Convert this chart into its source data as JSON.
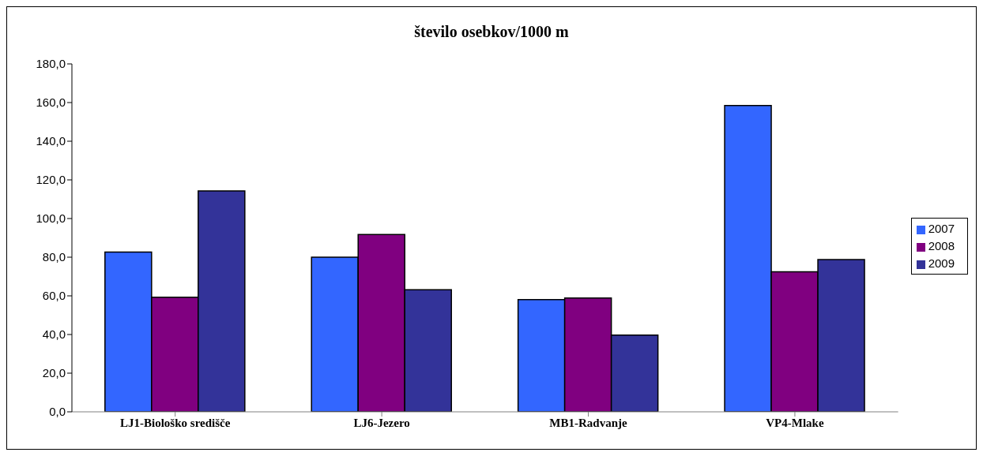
{
  "chart_data": {
    "type": "bar",
    "title": "število osebkov/1000 m",
    "categories": [
      "LJ1-Biološko središče",
      "LJ6-Jezero",
      "MB1-Radvanje",
      "VP4-Mlake"
    ],
    "series": [
      {
        "name": "2007",
        "color": "#3366ff",
        "values": [
          82.7,
          80.0,
          58.1,
          158.5
        ]
      },
      {
        "name": "2008",
        "color": "#800080",
        "values": [
          59.3,
          91.7,
          58.9,
          72.4
        ]
      },
      {
        "name": "2009",
        "color": "#333399",
        "values": [
          114.3,
          63.2,
          39.7,
          78.8
        ]
      }
    ],
    "ylim": [
      0,
      180
    ],
    "yticks": [
      {
        "value": 0,
        "label": "0,0"
      },
      {
        "value": 20,
        "label": "20,0"
      },
      {
        "value": 40,
        "label": "40,0"
      },
      {
        "value": 60,
        "label": "60,0"
      },
      {
        "value": 80,
        "label": "80,0"
      },
      {
        "value": 100,
        "label": "100,0"
      },
      {
        "value": 120,
        "label": "120,0"
      },
      {
        "value": 140,
        "label": "140,0"
      },
      {
        "value": 160,
        "label": "160,0"
      },
      {
        "value": 180,
        "label": "180,0"
      }
    ],
    "grid": false,
    "legend": "right"
  }
}
